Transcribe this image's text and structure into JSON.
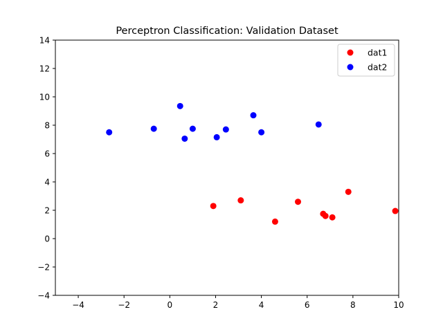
{
  "chart_data": {
    "type": "scatter",
    "title": "Perceptron Classification: Validation Dataset",
    "xlabel": "",
    "ylabel": "",
    "xlim": [
      -5,
      10
    ],
    "ylim": [
      -4,
      14
    ],
    "xticks": [
      -4,
      -2,
      0,
      2,
      4,
      6,
      8,
      10
    ],
    "yticks": [
      -4,
      -2,
      0,
      2,
      4,
      6,
      8,
      10,
      12,
      14
    ],
    "grid": false,
    "legend_position": "top-right",
    "series": [
      {
        "name": "dat1",
        "color": "#ff0000",
        "points": [
          {
            "x": 1.9,
            "y": 2.3
          },
          {
            "x": 3.1,
            "y": 2.7
          },
          {
            "x": 4.6,
            "y": 1.2
          },
          {
            "x": 5.6,
            "y": 2.6
          },
          {
            "x": 6.7,
            "y": 1.75
          },
          {
            "x": 6.8,
            "y": 1.6
          },
          {
            "x": 7.1,
            "y": 1.5
          },
          {
            "x": 7.8,
            "y": 3.3
          },
          {
            "x": 9.85,
            "y": 1.95
          }
        ]
      },
      {
        "name": "dat2",
        "color": "#0000ff",
        "points": [
          {
            "x": -2.65,
            "y": 7.5
          },
          {
            "x": -0.7,
            "y": 7.75
          },
          {
            "x": 0.45,
            "y": 9.35
          },
          {
            "x": 0.65,
            "y": 7.05
          },
          {
            "x": 1.0,
            "y": 7.75
          },
          {
            "x": 2.05,
            "y": 7.15
          },
          {
            "x": 2.45,
            "y": 7.7
          },
          {
            "x": 3.65,
            "y": 8.7
          },
          {
            "x": 4.0,
            "y": 7.5
          },
          {
            "x": 6.5,
            "y": 8.05
          }
        ]
      }
    ]
  }
}
